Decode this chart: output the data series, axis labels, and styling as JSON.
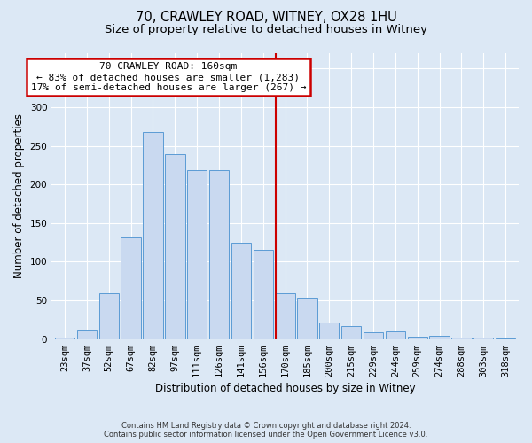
{
  "title_line1": "70, CRAWLEY ROAD, WITNEY, OX28 1HU",
  "title_line2": "Size of property relative to detached houses in Witney",
  "xlabel": "Distribution of detached houses by size in Witney",
  "ylabel": "Number of detached properties",
  "footer_line1": "Contains HM Land Registry data © Crown copyright and database right 2024.",
  "footer_line2": "Contains public sector information licensed under the Open Government Licence v3.0.",
  "bar_labels": [
    "23sqm",
    "37sqm",
    "52sqm",
    "67sqm",
    "82sqm",
    "97sqm",
    "111sqm",
    "126sqm",
    "141sqm",
    "156sqm",
    "170sqm",
    "185sqm",
    "200sqm",
    "215sqm",
    "229sqm",
    "244sqm",
    "259sqm",
    "274sqm",
    "288sqm",
    "303sqm",
    "318sqm"
  ],
  "bar_values": [
    2,
    11,
    59,
    131,
    268,
    239,
    219,
    219,
    125,
    116,
    59,
    54,
    22,
    17,
    9,
    10,
    3,
    4,
    2,
    2,
    1
  ],
  "bar_color": "#c9d9f0",
  "bar_edge_color": "#5b9bd5",
  "vline_x_index": 9.575,
  "vline_color": "#cc0000",
  "annotation_text": "70 CRAWLEY ROAD: 160sqm\n← 83% of detached houses are smaller (1,283)\n17% of semi-detached houses are larger (267) →",
  "annotation_box_color": "#cc0000",
  "annotation_text_color": "#000000",
  "background_color": "#dce8f5",
  "plot_bg_color": "#dce8f5",
  "ylim": [
    0,
    370
  ],
  "yticks": [
    0,
    50,
    100,
    150,
    200,
    250,
    300,
    350
  ],
  "grid_color": "#ffffff",
  "title_fontsize": 10.5,
  "subtitle_fontsize": 9.5,
  "axis_label_fontsize": 8.5,
  "tick_fontsize": 7.5,
  "footer_fontsize": 6.0
}
